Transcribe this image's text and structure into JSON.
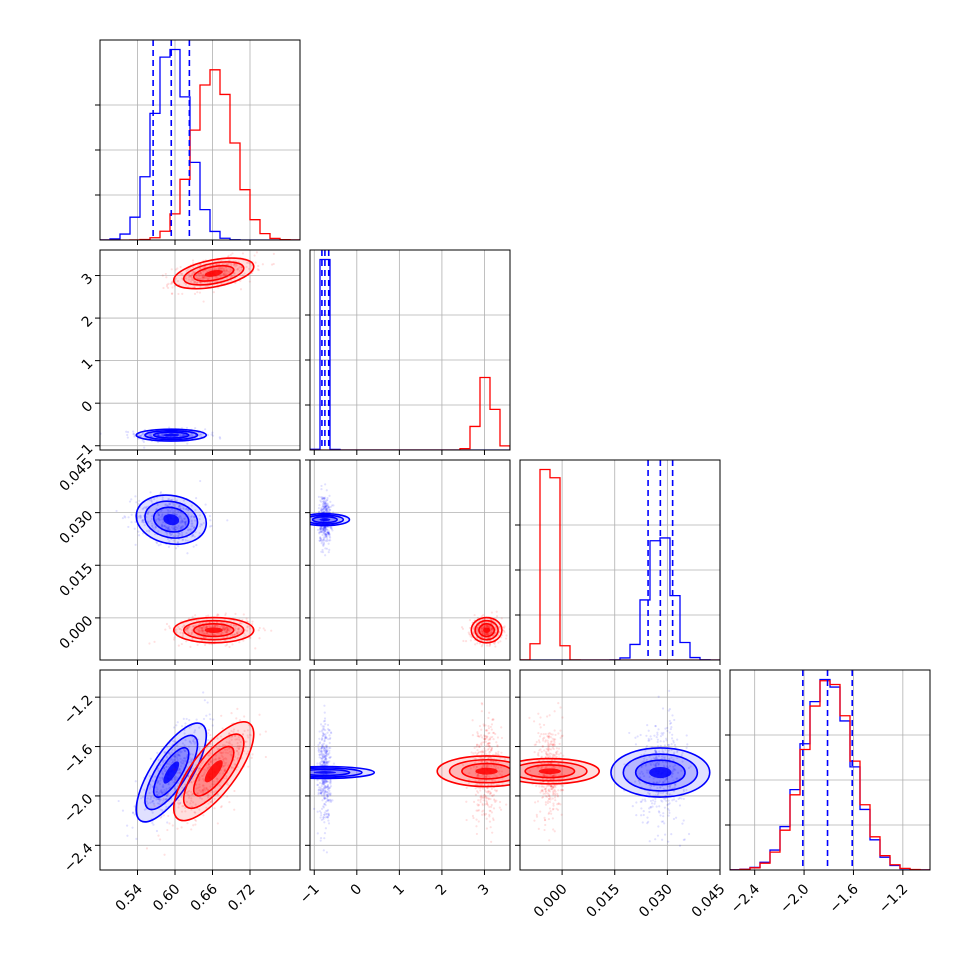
{
  "chart_data": {
    "type": "corner",
    "grid": true,
    "series": [
      {
        "color": "#0000ff",
        "marginals": [
          {
            "mean": 0.594,
            "sd": 0.028,
            "q16": 0.565,
            "q50": 0.594,
            "q84": 0.623
          },
          {
            "mean": -0.75,
            "sd": 0.07,
            "q16": -0.82,
            "q50": -0.75,
            "q84": -0.66
          },
          {
            "mean": 0.028,
            "sd": 0.0035,
            "q16": 0.0245,
            "q50": 0.028,
            "q84": 0.0315
          },
          {
            "mean": -1.81,
            "sd": 0.2,
            "q16": -2.01,
            "q50": -1.81,
            "q84": -1.61
          }
        ],
        "correlations": {
          "0-1": 0.0,
          "0-2": -0.15,
          "0-3": 0.75,
          "1-2": 0.0,
          "1-3": 0.0,
          "2-3": 0.0
        }
      },
      {
        "color": "#ff0000",
        "marginals": [
          {
            "mean": 0.662,
            "sd": 0.032
          },
          {
            "mean": 3.05,
            "sd": 0.18
          },
          {
            "mean": -0.0035,
            "sd": 0.0018
          },
          {
            "mean": -1.8,
            "sd": 0.2
          }
        ],
        "correlations": {
          "0-1": 0.45,
          "0-2": 0.0,
          "0-3": 0.75,
          "1-2": 0.0,
          "1-3": 0.0,
          "2-3": 0.0
        }
      }
    ],
    "parameters": [
      {
        "range": [
          0.48,
          0.8
        ],
        "ticks": [
          0.54,
          0.6,
          0.66,
          0.72
        ],
        "tick_labels": [
          "0.54",
          "0.60",
          "0.66",
          "0.72"
        ]
      },
      {
        "range": [
          -1.1,
          3.6
        ],
        "ticks": [
          -1,
          0,
          1,
          2,
          3
        ],
        "tick_labels": [
          "−1",
          "0",
          "1",
          "2",
          "3"
        ]
      },
      {
        "range": [
          -0.012,
          0.045
        ],
        "ticks": [
          0.0,
          0.015,
          0.03,
          0.045
        ],
        "tick_labels": [
          "0.000",
          "0.015",
          "0.030",
          "0.045"
        ]
      },
      {
        "range": [
          -2.6,
          -0.98
        ],
        "ticks": [
          -2.4,
          -2.0,
          -1.6,
          -1.2
        ],
        "tick_labels": [
          "−2.4",
          "−2.0",
          "−1.6",
          "−1.2"
        ]
      }
    ],
    "histogram_bins": 20
  }
}
